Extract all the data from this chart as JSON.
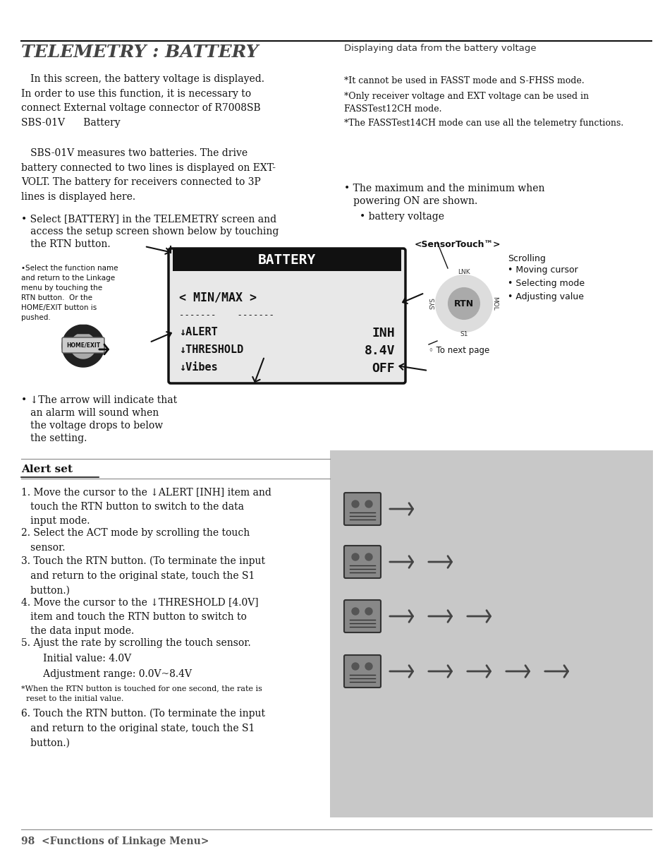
{
  "page_bg": "#ffffff",
  "title": "TELEMETRY : BATTERY",
  "title_right": "Displaying data from the battery voltage",
  "body_text_1": "   In this screen, the battery voltage is displayed.\nIn order to use this function, it is necessary to\nconnect External voltage connector of R7008SB\nSBS-01V      Battery",
  "body_text_2": "   SBS-01V measures two batteries. The drive\nbattery connected to two lines is displayed on EXT-\nVOLT. The battery for receivers connected to 3P\nlines is displayed here.",
  "bullet1_a": "• Select [BATTERY] in the TELEMETRY screen and",
  "bullet1_b": "   access the setup screen shown below by touching",
  "bullet1_c": "   the RTN button.",
  "small_bullet1": "•Select the function name\nand return to the Linkage\nmenu by touching the\nRTN button.  Or the\nHOME/EXIT button is\npushed.",
  "bullet_right1a": "• The maximum and the minimum when",
  "bullet_right1b": "   powering ON are shown.",
  "bullet_right2": "• battery voltage",
  "sensor_touch": "<SensorTouch™>",
  "scrolling_label": "Scrolling",
  "scrolling_items": "• Moving cursor\n• Selecting mode\n• Adjusting value",
  "to_next_page": "◦ To next page",
  "arrow_text_a": "• ↓The arrow will indicate that",
  "arrow_text_b": "   an alarm will sound when",
  "arrow_text_c": "   the voltage drops to below",
  "arrow_text_d": "   the setting.",
  "alert_set_title": "Alert set",
  "note1": "*It cannot be used in FASST mode and S-FHSS mode.",
  "note2": "*Only receiver voltage and EXT voltage can be used in\nFASSTest12CH mode.",
  "note3": "*The FASSTest14CH mode can use all the telemetry functions.",
  "step1": "1. Move the cursor to the ↓ALERT [INH] item and\n   touch the RTN button to switch to the data\n   input mode.",
  "step2": "2. Select the ACT mode by scrolling the touch\n   sensor.",
  "step3": "3. Touch the RTN button. (To terminate the input\n   and return to the original state, touch the S1\n   button.)",
  "step4": "4. Move the cursor to the ↓THRESHOLD [4.0V]\n   item and touch the RTN button to switch to\n   the data input mode.",
  "step5": "5. Ajust the rate by scrolling the touch sensor.",
  "step5a": "   Initial value: 4.0V",
  "step5b": "   Adjustment range: 0.0V~8.4V",
  "step_note": "*When the RTN button is touched for one second, the rate is\n  reset to the initial value.",
  "step6": "6. Touch the RTN button. (To terminate the input\n   and return to the original state, touch the S1\n   button.)",
  "footer": "98  <Functions of Linkage Menu>"
}
